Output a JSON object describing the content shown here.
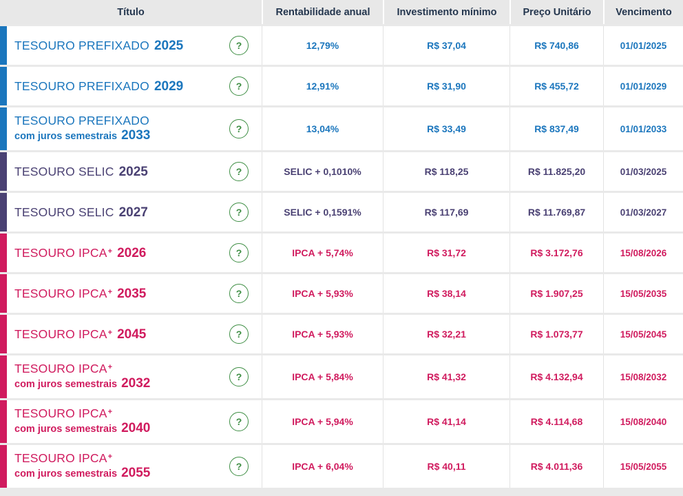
{
  "colors": {
    "prefixado": "#1b76bd",
    "selic": "#4a4173",
    "ipca": "#d01b5e",
    "help_green": "#3e8e44",
    "header_text": "#24364e",
    "header_bg": "#e8e8e8",
    "page_bg": "#e9e9e9"
  },
  "icons": {
    "help_label": "?"
  },
  "table": {
    "header": {
      "titulo": "Título",
      "rentabilidade": "Rentabilidade anual",
      "investimento": "Investimento mínimo",
      "preco": "Preço Unitário",
      "vencimento": "Vencimento"
    },
    "rows": [
      {
        "name": "TESOURO PREFIXADO",
        "year": "2025",
        "rate": "12,79%",
        "min": "R$ 37,04",
        "price": "R$ 740,86",
        "due": "01/01/2025"
      },
      {
        "name": "TESOURO PREFIXADO",
        "year": "2029",
        "rate": "12,91%",
        "min": "R$ 31,90",
        "price": "R$ 455,72",
        "due": "01/01/2029"
      },
      {
        "name": "TESOURO PREFIXADO",
        "sub": "com juros semestrais",
        "year": "2033",
        "rate": "13,04%",
        "min": "R$ 33,49",
        "price": "R$ 837,49",
        "due": "01/01/2033"
      },
      {
        "name": "TESOURO SELIC",
        "year": "2025",
        "rate": "SELIC + 0,1010%",
        "min": "R$ 118,25",
        "price": "R$ 11.825,20",
        "due": "01/03/2025"
      },
      {
        "name": "TESOURO SELIC",
        "year": "2027",
        "rate": "SELIC + 0,1591%",
        "min": "R$ 117,69",
        "price": "R$ 11.769,87",
        "due": "01/03/2027"
      },
      {
        "name": "TESOURO IPCA",
        "sup": "+",
        "year": "2026",
        "rate": "IPCA + 5,74%",
        "min": "R$ 31,72",
        "price": "R$ 3.172,76",
        "due": "15/08/2026"
      },
      {
        "name": "TESOURO IPCA",
        "sup": "+",
        "year": "2035",
        "rate": "IPCA + 5,93%",
        "min": "R$ 38,14",
        "price": "R$ 1.907,25",
        "due": "15/05/2035"
      },
      {
        "name": "TESOURO IPCA",
        "sup": "+",
        "year": "2045",
        "rate": "IPCA + 5,93%",
        "min": "R$ 32,21",
        "price": "R$ 1.073,77",
        "due": "15/05/2045"
      },
      {
        "name": "TESOURO IPCA",
        "sup": "+",
        "sub": "com juros semestrais",
        "year": "2032",
        "rate": "IPCA + 5,84%",
        "min": "R$ 41,32",
        "price": "R$ 4.132,94",
        "due": "15/08/2032"
      },
      {
        "name": "TESOURO IPCA",
        "sup": "+",
        "sub": "com juros semestrais",
        "year": "2040",
        "rate": "IPCA + 5,94%",
        "min": "R$ 41,14",
        "price": "R$ 4.114,68",
        "due": "15/08/2040"
      },
      {
        "name": "TESOURO IPCA",
        "sup": "+",
        "sub": "com juros semestrais",
        "year": "2055",
        "rate": "IPCA + 6,04%",
        "min": "R$ 40,11",
        "price": "R$ 4.011,36",
        "due": "15/05/2055"
      }
    ]
  }
}
